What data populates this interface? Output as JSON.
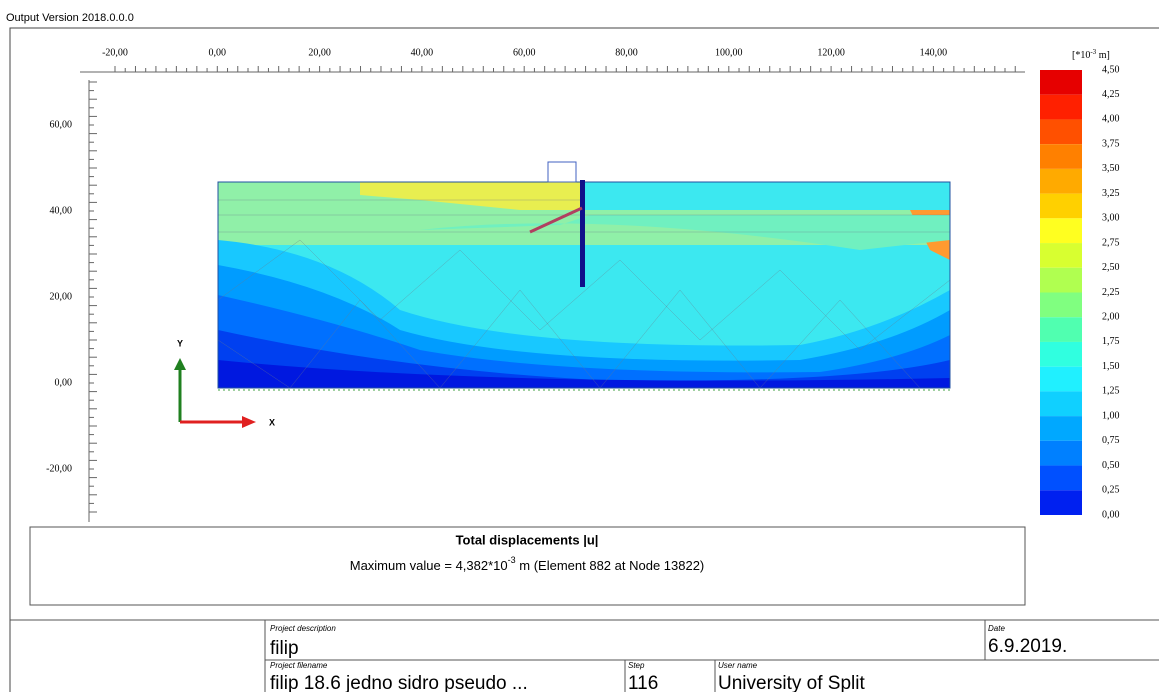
{
  "app": {
    "version": "Output Version 2018.0.0.0"
  },
  "axes": {
    "x_labels": [
      "-20,00",
      "0,00",
      "20,00",
      "40,00",
      "60,00",
      "80,00",
      "100,00",
      "120,00",
      "140,00"
    ],
    "y_labels": [
      "60,00",
      "40,00",
      "20,00",
      "0,00",
      "-20,00"
    ],
    "y_name": "Y",
    "x_name": "X"
  },
  "legend": {
    "unit_parts": [
      "[*10",
      "-3",
      " m]"
    ],
    "labels": [
      "4,50",
      "4,25",
      "4,00",
      "3,75",
      "3,50",
      "3,25",
      "3,00",
      "2,75",
      "2,50",
      "2,25",
      "2,00",
      "1,75",
      "1,50",
      "1,25",
      "1,00",
      "0,75",
      "0,50",
      "0,25",
      "0,00"
    ],
    "colors": [
      "#e60000",
      "#ff2000",
      "#ff5000",
      "#ff8000",
      "#ffaa00",
      "#ffd000",
      "#ffff20",
      "#d8ff30",
      "#b0ff50",
      "#80ff80",
      "#50ffb0",
      "#30ffe0",
      "#20f0ff",
      "#10d0ff",
      "#00a8ff",
      "#0080ff",
      "#0050ff",
      "#0020f0"
    ]
  },
  "info": {
    "title": "Total displacements |u|",
    "max_parts": [
      "Maximum value = 4,382*10",
      "-3",
      " m (Element 882 at Node 13822)"
    ]
  },
  "footer": {
    "project_description_label": "Project description",
    "project_description": "filip",
    "date_label": "Date",
    "date": "6.9.2019.",
    "project_filename_label": "Project filename",
    "project_filename": "filip 18.6 jedno sidro pseudo ...",
    "step_label": "Step",
    "step": "116",
    "user_name_label": "User name",
    "user_name": "University of Split"
  }
}
